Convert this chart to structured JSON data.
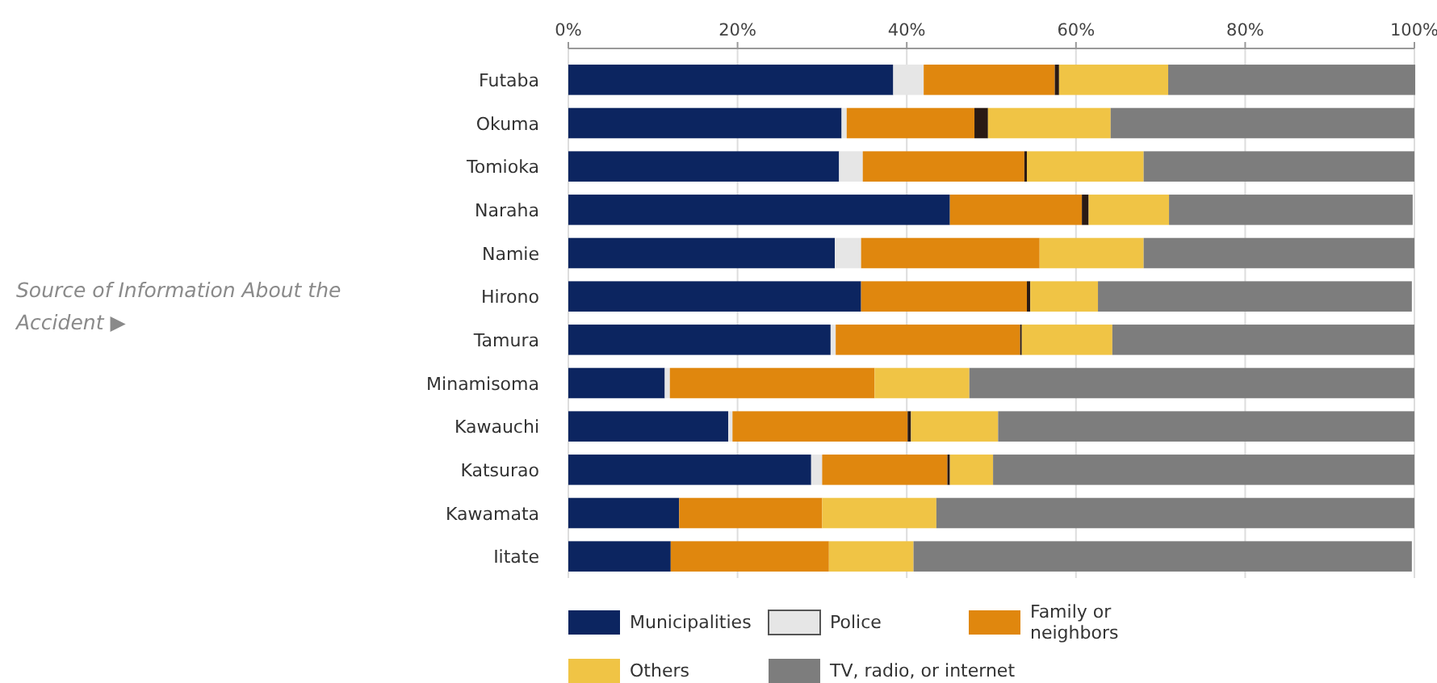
{
  "chart_data": {
    "type": "bar",
    "orientation": "horizontal",
    "stacked": true,
    "title": "Source of Information About the Accident ▶",
    "categories": [
      "Futaba",
      "Okuma",
      "Tomioka",
      "Naraha",
      "Namie",
      "Hirono",
      "Tamura",
      "Minamisoma",
      "Kawauchi",
      "Katsurao",
      "Kawamata",
      "Iitate"
    ],
    "series": [
      {
        "name": "Municipalities",
        "color": "#0c2560",
        "values": [
          38.4,
          32.3,
          32.0,
          45.1,
          31.5,
          34.6,
          31.0,
          11.4,
          18.9,
          28.7,
          13.1,
          12.1
        ]
      },
      {
        "name": "Police",
        "color": "#e6e6e6",
        "values": [
          3.6,
          0.6,
          2.8,
          null,
          3.1,
          null,
          0.6,
          0.6,
          0.5,
          1.3,
          0,
          null
        ]
      },
      {
        "name": "Family or neighbors",
        "color": "#e0870e",
        "values": [
          15.5,
          15.1,
          19.1,
          15.6,
          21.1,
          19.6,
          21.8,
          24.2,
          20.7,
          14.8,
          16.9,
          18.7
        ]
      },
      {
        "color": "#2a1a14",
        "values": [
          0.5,
          1.6,
          0.3,
          0.8,
          0,
          0.4,
          0.2,
          0,
          0.4,
          0.3,
          0,
          0
        ]
      },
      {
        "name": "Others",
        "color": "#f0c445",
        "values": [
          12.9,
          14.5,
          13.8,
          9.5,
          12.3,
          8.0,
          10.7,
          11.2,
          10.3,
          5.1,
          13.5,
          10.0
        ]
      },
      {
        "name": "TV, radio, or internet",
        "color": "#7d7d7d",
        "values": [
          29.2,
          35.9,
          32.0,
          28.8,
          32.0,
          37.1,
          35.7,
          52.6,
          49.2,
          49.8,
          56.5,
          58.9
        ]
      }
    ],
    "xlim": [
      0,
      100
    ],
    "xticks": [
      {
        "value": 0,
        "label": "0%"
      },
      {
        "value": 20,
        "label": "20%"
      },
      {
        "value": 40,
        "label": "40%"
      },
      {
        "value": 60,
        "label": "60%"
      },
      {
        "value": 80,
        "label": "80%"
      },
      {
        "value": 100,
        "label": "100%"
      }
    ],
    "grid": "x",
    "legend": "bottom"
  }
}
